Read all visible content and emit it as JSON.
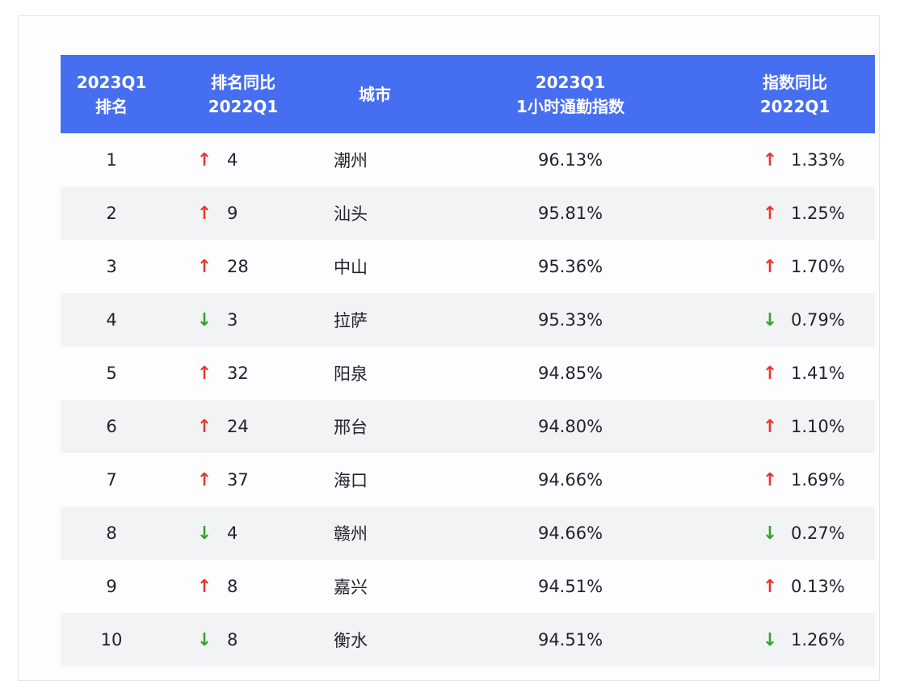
{
  "colors": {
    "header_bg": "#466ef0",
    "header_text": "#ffffff",
    "up": "#e8382b",
    "down": "#2ea52a",
    "alt_row": "#f2f3f5"
  },
  "header": {
    "col1": [
      "2023Q1",
      "排名"
    ],
    "col2": [
      "排名同比",
      "2022Q1"
    ],
    "col3": [
      "城市"
    ],
    "col4": [
      "2023Q1",
      "1小时通勤指数"
    ],
    "col5": [
      "指数同比",
      "2022Q1"
    ]
  },
  "rows": [
    {
      "rank": "1",
      "rank_dir": "up",
      "rank_arrow": "↑",
      "rank_change": "4",
      "city": "潮州",
      "index": "96.13%",
      "idx_dir": "up",
      "idx_arrow": "↑",
      "idx_change": "1.33%"
    },
    {
      "rank": "2",
      "rank_dir": "up",
      "rank_arrow": "↑",
      "rank_change": "9",
      "city": "汕头",
      "index": "95.81%",
      "idx_dir": "up",
      "idx_arrow": "↑",
      "idx_change": "1.25%"
    },
    {
      "rank": "3",
      "rank_dir": "up",
      "rank_arrow": "↑",
      "rank_change": "28",
      "city": "中山",
      "index": "95.36%",
      "idx_dir": "up",
      "idx_arrow": "↑",
      "idx_change": "1.70%"
    },
    {
      "rank": "4",
      "rank_dir": "down",
      "rank_arrow": "↓",
      "rank_change": "3",
      "city": "拉萨",
      "index": "95.33%",
      "idx_dir": "down",
      "idx_arrow": "↓",
      "idx_change": "0.79%"
    },
    {
      "rank": "5",
      "rank_dir": "up",
      "rank_arrow": "↑",
      "rank_change": "32",
      "city": "阳泉",
      "index": "94.85%",
      "idx_dir": "up",
      "idx_arrow": "↑",
      "idx_change": "1.41%"
    },
    {
      "rank": "6",
      "rank_dir": "up",
      "rank_arrow": "↑",
      "rank_change": "24",
      "city": "邢台",
      "index": "94.80%",
      "idx_dir": "up",
      "idx_arrow": "↑",
      "idx_change": "1.10%"
    },
    {
      "rank": "7",
      "rank_dir": "up",
      "rank_arrow": "↑",
      "rank_change": "37",
      "city": "海口",
      "index": "94.66%",
      "idx_dir": "up",
      "idx_arrow": "↑",
      "idx_change": "1.69%"
    },
    {
      "rank": "8",
      "rank_dir": "down",
      "rank_arrow": "↓",
      "rank_change": "4",
      "city": "赣州",
      "index": "94.66%",
      "idx_dir": "down",
      "idx_arrow": "↓",
      "idx_change": "0.27%"
    },
    {
      "rank": "9",
      "rank_dir": "up",
      "rank_arrow": "↑",
      "rank_change": "8",
      "city": "嘉兴",
      "index": "94.51%",
      "idx_dir": "up",
      "idx_arrow": "↑",
      "idx_change": "0.13%"
    },
    {
      "rank": "10",
      "rank_dir": "down",
      "rank_arrow": "↓",
      "rank_change": "8",
      "city": "衡水",
      "index": "94.51%",
      "idx_dir": "down",
      "idx_arrow": "↓",
      "idx_change": "1.26%"
    }
  ]
}
